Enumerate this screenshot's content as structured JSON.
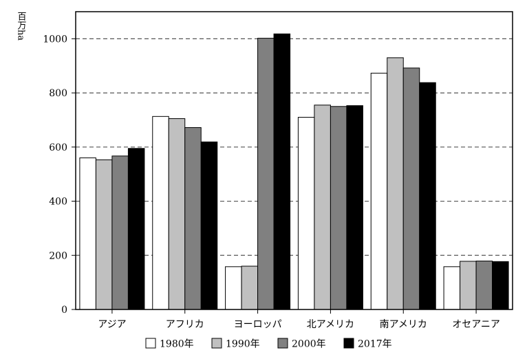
{
  "chart_data": {
    "type": "bar",
    "ylabel": "百万ha",
    "ylim": [
      0,
      1100
    ],
    "yticks": [
      0,
      200,
      400,
      600,
      800,
      1000
    ],
    "grid": true,
    "legend_position": "bottom",
    "categories": [
      "アジア",
      "アフリカ",
      "ヨーロッパ",
      "北アメリカ",
      "南アメリカ",
      "オセアニア"
    ],
    "series": [
      {
        "name": "1980年",
        "color": "#ffffff",
        "values": [
          560,
          713,
          158,
          710,
          873,
          158
        ]
      },
      {
        "name": "1990年",
        "color": "#c0c0c0",
        "values": [
          553,
          705,
          160,
          755,
          930,
          178
        ]
      },
      {
        "name": "2000年",
        "color": "#808080",
        "values": [
          567,
          672,
          1002,
          750,
          892,
          179
        ]
      },
      {
        "name": "2017年",
        "color": "#000000",
        "values": [
          595,
          619,
          1018,
          753,
          838,
          177
        ]
      }
    ]
  }
}
